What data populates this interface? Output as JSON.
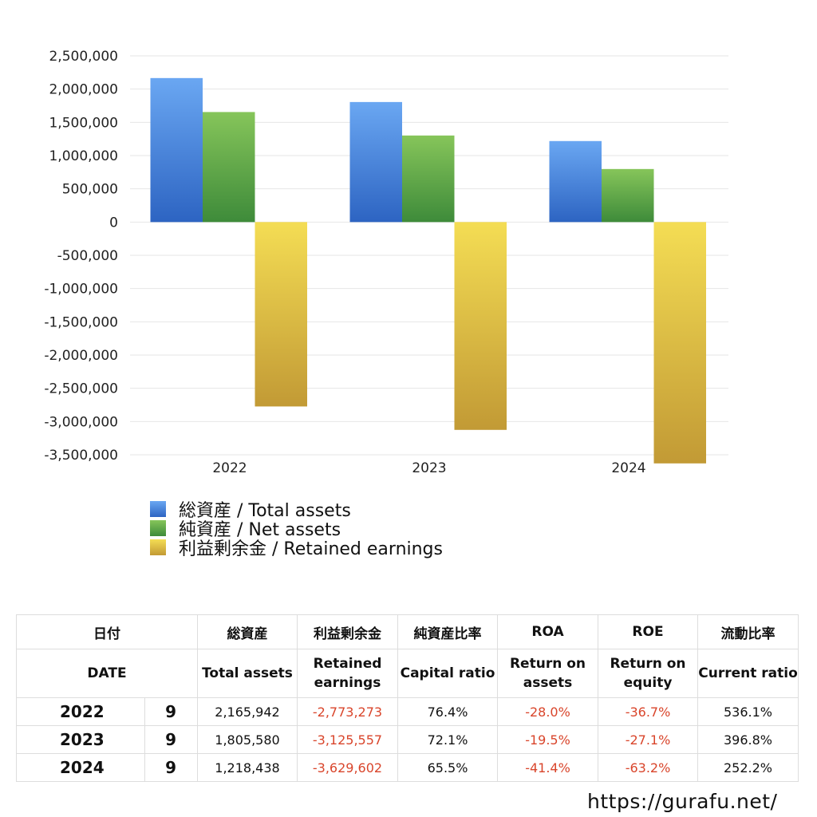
{
  "chart_data": {
    "type": "bar",
    "categories": [
      "2022",
      "2023",
      "2024"
    ],
    "series": [
      {
        "name": "総資産 / Total assets",
        "values": [
          2165942,
          1805580,
          1218438
        ],
        "color": "blue"
      },
      {
        "name": "純資産 / Net assets",
        "values": [
          1655000,
          1302000,
          798000
        ],
        "color": "green"
      },
      {
        "name": "利益剰余金 / Retained earnings",
        "values": [
          -2773273,
          -3125557,
          -3629602
        ],
        "color": "yellow"
      }
    ],
    "ylim": [
      -3500000,
      2500000
    ],
    "yticks": [
      2500000,
      2000000,
      1500000,
      1000000,
      500000,
      0,
      -500000,
      -1000000,
      -1500000,
      -2000000,
      -2500000,
      -3000000,
      -3500000
    ],
    "ytick_labels": [
      "2,500,000",
      "2,000,000",
      "1,500,000",
      "1,000,000",
      "500,000",
      "0",
      "-500,000",
      "-1,000,000",
      "-1,500,000",
      "-2,000,000",
      "-2,500,000",
      "-3,000,000",
      "-3,500,000"
    ],
    "grid": true,
    "legend_position": "bottom-left"
  },
  "legend": {
    "items": [
      "総資産 / Total assets",
      "純資産 / Net assets",
      "利益剰余金 / Retained earnings"
    ]
  },
  "table": {
    "header_jp": [
      "日付",
      "",
      "総資産",
      "利益剰余金",
      "純資産比率",
      "ROA",
      "ROE",
      "流動比率"
    ],
    "header_en": [
      "DATE",
      "Total assets",
      "Retained\nearnings",
      "Capital ratio",
      "Return on\nassets",
      "Return on\nequity",
      "Current ratio"
    ],
    "rows": [
      {
        "year": "2022",
        "month": "9",
        "total_assets": "2,165,942",
        "retained": "-2,773,273",
        "capital_ratio": "76.4%",
        "roa": "-28.0%",
        "roe": "-36.7%",
        "current_ratio": "536.1%"
      },
      {
        "year": "2023",
        "month": "9",
        "total_assets": "1,805,580",
        "retained": "-3,125,557",
        "capital_ratio": "72.1%",
        "roa": "-19.5%",
        "roe": "-27.1%",
        "current_ratio": "396.8%"
      },
      {
        "year": "2024",
        "month": "9",
        "total_assets": "1,218,438",
        "retained": "-3,629,602",
        "capital_ratio": "65.5%",
        "roa": "-41.4%",
        "roe": "-63.2%",
        "current_ratio": "252.2%"
      }
    ]
  },
  "footer": {
    "url": "https://gurafu.net/"
  }
}
